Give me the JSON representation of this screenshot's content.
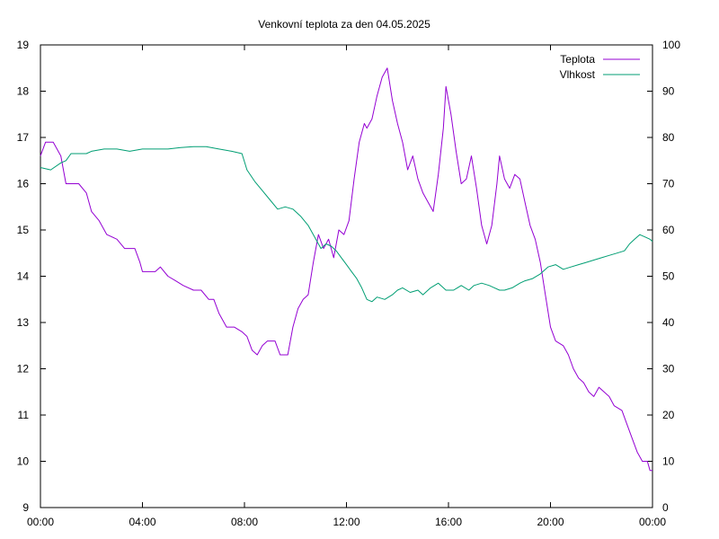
{
  "chart_data": {
    "type": "line",
    "title": "Venkovní teplota za den 04.05.2025",
    "xlabel": "",
    "ylabel": "",
    "y2label": "",
    "grid": false,
    "legend_position": "top-right",
    "x_ticks": [
      "00:00",
      "04:00",
      "08:00",
      "12:00",
      "16:00",
      "20:00",
      "00:00"
    ],
    "x_range_hours": [
      0,
      24
    ],
    "y_range": [
      9,
      19
    ],
    "y_ticks": [
      "9",
      "10",
      "11",
      "12",
      "13",
      "14",
      "15",
      "16",
      "17",
      "18",
      "19"
    ],
    "y2_range": [
      0,
      100
    ],
    "y2_ticks": [
      "0",
      "10",
      "20",
      "30",
      "40",
      "50",
      "60",
      "70",
      "80",
      "90",
      "100"
    ],
    "series": [
      {
        "name": "Teplota",
        "axis": "left",
        "color": "#9400d3",
        "points": [
          [
            0.0,
            16.6
          ],
          [
            0.2,
            16.9
          ],
          [
            0.5,
            16.9
          ],
          [
            0.8,
            16.6
          ],
          [
            1.0,
            16.0
          ],
          [
            1.5,
            16.0
          ],
          [
            1.8,
            15.8
          ],
          [
            2.0,
            15.4
          ],
          [
            2.3,
            15.2
          ],
          [
            2.6,
            14.9
          ],
          [
            3.0,
            14.8
          ],
          [
            3.3,
            14.6
          ],
          [
            3.7,
            14.6
          ],
          [
            3.9,
            14.3
          ],
          [
            4.0,
            14.1
          ],
          [
            4.5,
            14.1
          ],
          [
            4.7,
            14.2
          ],
          [
            5.0,
            14.0
          ],
          [
            5.3,
            13.9
          ],
          [
            5.6,
            13.8
          ],
          [
            6.0,
            13.7
          ],
          [
            6.3,
            13.7
          ],
          [
            6.6,
            13.5
          ],
          [
            6.8,
            13.5
          ],
          [
            7.0,
            13.2
          ],
          [
            7.3,
            12.9
          ],
          [
            7.6,
            12.9
          ],
          [
            7.9,
            12.8
          ],
          [
            8.1,
            12.7
          ],
          [
            8.3,
            12.4
          ],
          [
            8.5,
            12.3
          ],
          [
            8.7,
            12.5
          ],
          [
            8.9,
            12.6
          ],
          [
            9.2,
            12.6
          ],
          [
            9.4,
            12.3
          ],
          [
            9.7,
            12.3
          ],
          [
            9.9,
            12.9
          ],
          [
            10.1,
            13.3
          ],
          [
            10.3,
            13.5
          ],
          [
            10.5,
            13.6
          ],
          [
            10.7,
            14.3
          ],
          [
            10.9,
            14.9
          ],
          [
            11.1,
            14.6
          ],
          [
            11.3,
            14.8
          ],
          [
            11.5,
            14.4
          ],
          [
            11.7,
            15.0
          ],
          [
            11.9,
            14.9
          ],
          [
            12.1,
            15.2
          ],
          [
            12.3,
            16.1
          ],
          [
            12.5,
            16.9
          ],
          [
            12.7,
            17.3
          ],
          [
            12.8,
            17.2
          ],
          [
            13.0,
            17.4
          ],
          [
            13.2,
            17.9
          ],
          [
            13.4,
            18.3
          ],
          [
            13.6,
            18.5
          ],
          [
            13.8,
            17.8
          ],
          [
            14.0,
            17.3
          ],
          [
            14.2,
            16.9
          ],
          [
            14.4,
            16.3
          ],
          [
            14.6,
            16.6
          ],
          [
            14.8,
            16.1
          ],
          [
            15.0,
            15.8
          ],
          [
            15.2,
            15.6
          ],
          [
            15.4,
            15.4
          ],
          [
            15.6,
            16.2
          ],
          [
            15.8,
            17.2
          ],
          [
            15.9,
            18.1
          ],
          [
            16.1,
            17.5
          ],
          [
            16.3,
            16.7
          ],
          [
            16.5,
            16.0
          ],
          [
            16.7,
            16.1
          ],
          [
            16.9,
            16.6
          ],
          [
            17.1,
            15.9
          ],
          [
            17.3,
            15.1
          ],
          [
            17.5,
            14.7
          ],
          [
            17.7,
            15.1
          ],
          [
            17.9,
            16.0
          ],
          [
            18.0,
            16.6
          ],
          [
            18.2,
            16.1
          ],
          [
            18.4,
            15.9
          ],
          [
            18.6,
            16.2
          ],
          [
            18.8,
            16.1
          ],
          [
            19.0,
            15.6
          ],
          [
            19.2,
            15.1
          ],
          [
            19.4,
            14.8
          ],
          [
            19.6,
            14.3
          ],
          [
            19.8,
            13.6
          ],
          [
            20.0,
            12.9
          ],
          [
            20.2,
            12.6
          ],
          [
            20.5,
            12.5
          ],
          [
            20.7,
            12.3
          ],
          [
            20.9,
            12.0
          ],
          [
            21.1,
            11.8
          ],
          [
            21.3,
            11.7
          ],
          [
            21.5,
            11.5
          ],
          [
            21.7,
            11.4
          ],
          [
            21.9,
            11.6
          ],
          [
            22.1,
            11.5
          ],
          [
            22.3,
            11.4
          ],
          [
            22.5,
            11.2
          ],
          [
            22.8,
            11.1
          ],
          [
            23.0,
            10.8
          ],
          [
            23.2,
            10.5
          ],
          [
            23.4,
            10.2
          ],
          [
            23.6,
            10.0
          ],
          [
            23.8,
            10.0
          ],
          [
            23.9,
            9.8
          ],
          [
            24.0,
            9.8
          ]
        ]
      },
      {
        "name": "Vlhkost",
        "axis": "right",
        "color": "#009e73",
        "points": [
          [
            0.0,
            73.5
          ],
          [
            0.4,
            73.0
          ],
          [
            0.8,
            74.5
          ],
          [
            1.0,
            75.0
          ],
          [
            1.2,
            76.5
          ],
          [
            1.5,
            76.5
          ],
          [
            1.8,
            76.5
          ],
          [
            2.0,
            77.0
          ],
          [
            2.5,
            77.5
          ],
          [
            3.0,
            77.5
          ],
          [
            3.5,
            77.0
          ],
          [
            4.0,
            77.5
          ],
          [
            4.5,
            77.5
          ],
          [
            5.0,
            77.5
          ],
          [
            5.5,
            77.8
          ],
          [
            6.0,
            78.0
          ],
          [
            6.5,
            78.0
          ],
          [
            7.0,
            77.5
          ],
          [
            7.5,
            77.0
          ],
          [
            7.9,
            76.5
          ],
          [
            8.1,
            73.0
          ],
          [
            8.4,
            70.5
          ],
          [
            8.7,
            68.5
          ],
          [
            9.0,
            66.5
          ],
          [
            9.3,
            64.5
          ],
          [
            9.6,
            65.0
          ],
          [
            9.9,
            64.5
          ],
          [
            10.2,
            63.0
          ],
          [
            10.5,
            61.0
          ],
          [
            10.8,
            58.0
          ],
          [
            11.0,
            56.0
          ],
          [
            11.2,
            57.0
          ],
          [
            11.4,
            56.5
          ],
          [
            11.6,
            55.5
          ],
          [
            11.8,
            54.0
          ],
          [
            12.0,
            52.5
          ],
          [
            12.2,
            51.0
          ],
          [
            12.4,
            49.5
          ],
          [
            12.6,
            47.5
          ],
          [
            12.8,
            45.0
          ],
          [
            13.0,
            44.5
          ],
          [
            13.2,
            45.5
          ],
          [
            13.5,
            45.0
          ],
          [
            13.8,
            46.0
          ],
          [
            14.0,
            47.0
          ],
          [
            14.2,
            47.5
          ],
          [
            14.5,
            46.5
          ],
          [
            14.8,
            47.0
          ],
          [
            15.0,
            46.0
          ],
          [
            15.3,
            47.5
          ],
          [
            15.6,
            48.5
          ],
          [
            15.9,
            47.0
          ],
          [
            16.2,
            47.0
          ],
          [
            16.5,
            48.0
          ],
          [
            16.8,
            47.0
          ],
          [
            17.0,
            48.0
          ],
          [
            17.3,
            48.5
          ],
          [
            17.6,
            48.0
          ],
          [
            17.8,
            47.5
          ],
          [
            18.0,
            47.0
          ],
          [
            18.2,
            47.0
          ],
          [
            18.5,
            47.5
          ],
          [
            18.8,
            48.5
          ],
          [
            19.0,
            49.0
          ],
          [
            19.3,
            49.5
          ],
          [
            19.6,
            50.5
          ],
          [
            19.9,
            52.0
          ],
          [
            20.2,
            52.5
          ],
          [
            20.5,
            51.5
          ],
          [
            20.8,
            52.0
          ],
          [
            21.1,
            52.5
          ],
          [
            21.4,
            53.0
          ],
          [
            21.7,
            53.5
          ],
          [
            22.0,
            54.0
          ],
          [
            22.3,
            54.5
          ],
          [
            22.6,
            55.0
          ],
          [
            22.9,
            55.5
          ],
          [
            23.1,
            57.0
          ],
          [
            23.3,
            58.0
          ],
          [
            23.5,
            59.0
          ],
          [
            23.7,
            58.5
          ],
          [
            23.9,
            58.0
          ],
          [
            24.0,
            57.5
          ]
        ]
      }
    ]
  }
}
